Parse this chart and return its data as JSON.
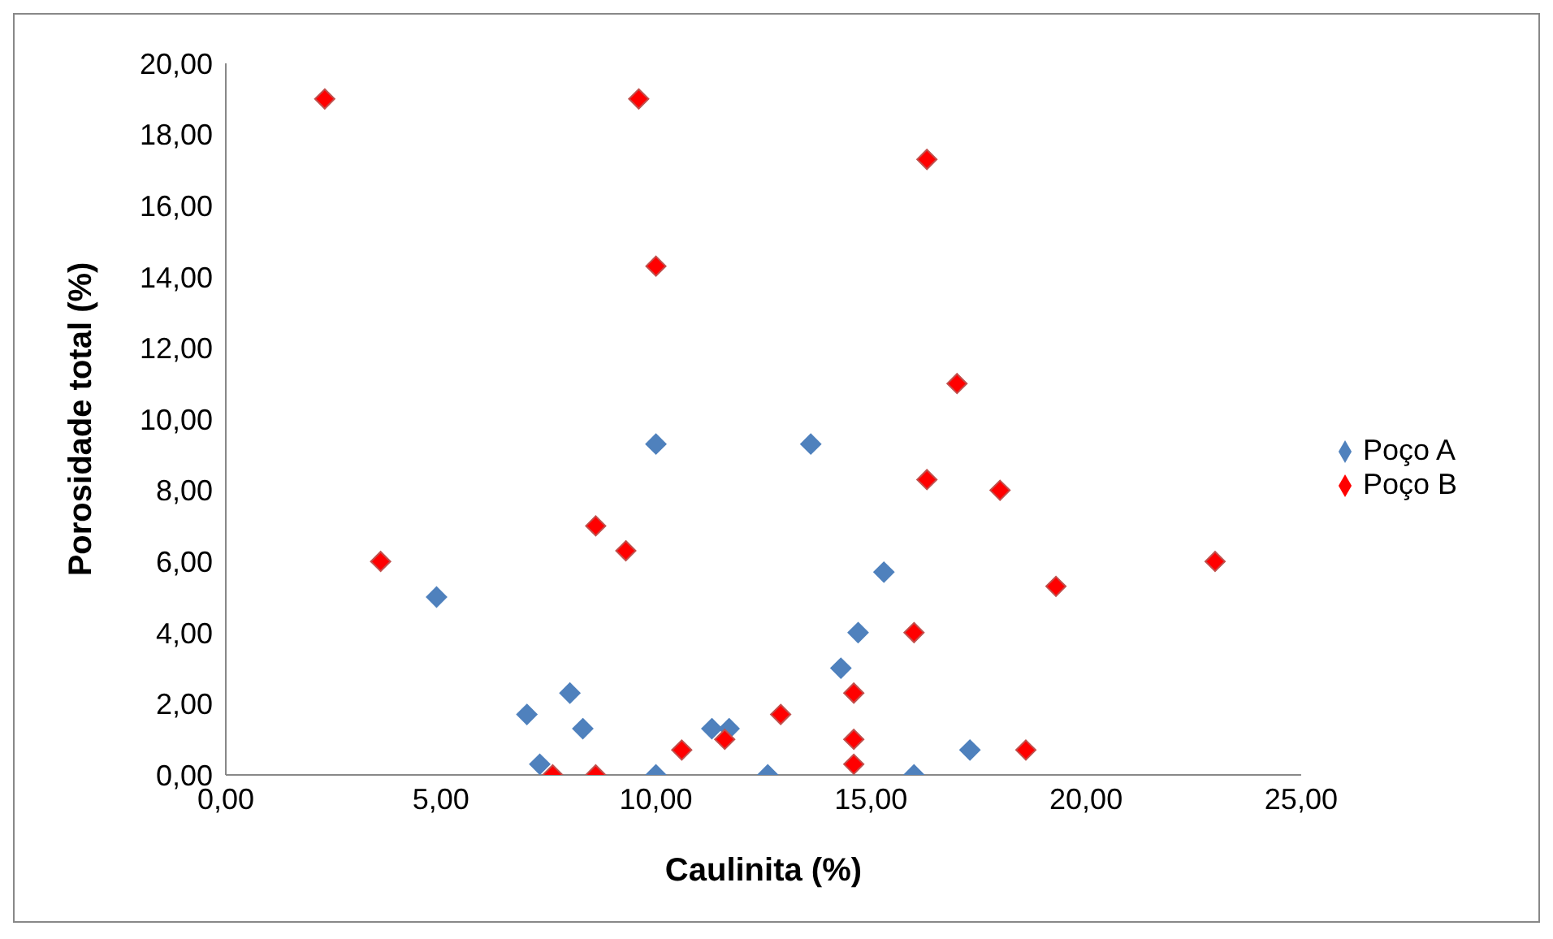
{
  "chart_data": {
    "type": "scatter",
    "xlabel": "Caulinita (%)",
    "ylabel": "Porosidade total (%)",
    "xlim": [
      0,
      25
    ],
    "xticks": [
      {
        "value": 0,
        "label": "0,00"
      },
      {
        "value": 5,
        "label": "5,00"
      },
      {
        "value": 10,
        "label": "10,00"
      },
      {
        "value": 15,
        "label": "15,00"
      },
      {
        "value": 20,
        "label": "20,00"
      },
      {
        "value": 25,
        "label": "25,00"
      }
    ],
    "ylim": [
      0,
      20
    ],
    "yticks": [
      {
        "value": 0,
        "label": "0,00"
      },
      {
        "value": 2,
        "label": "2,00"
      },
      {
        "value": 4,
        "label": "4,00"
      },
      {
        "value": 6,
        "label": "6,00"
      },
      {
        "value": 8,
        "label": "8,00"
      },
      {
        "value": 10,
        "label": "10,00"
      },
      {
        "value": 12,
        "label": "12,00"
      },
      {
        "value": 14,
        "label": "14,00"
      },
      {
        "value": 16,
        "label": "16,00"
      },
      {
        "value": 18,
        "label": "18,00"
      },
      {
        "value": 20,
        "label": "20,00"
      }
    ],
    "grid": false,
    "legend": "right",
    "marker": "diamond",
    "series": [
      {
        "name": "Poço A",
        "color": "#4f81bd",
        "x": [
          4.9,
          7.0,
          8.0,
          8.3,
          7.3,
          10.0,
          10.0,
          11.3,
          11.7,
          12.6,
          13.6,
          14.3,
          14.7,
          15.3,
          16.0,
          17.3
        ],
        "values": [
          5.0,
          1.7,
          2.3,
          1.3,
          0.3,
          0,
          9.3,
          1.3,
          1.3,
          0,
          9.3,
          3.0,
          4.0,
          5.7,
          0,
          0.7
        ]
      },
      {
        "name": "Poço B",
        "color": "#ff0000",
        "x": [
          2.3,
          3.6,
          7.6,
          8.6,
          8.6,
          9.3,
          9.6,
          10.0,
          10.6,
          11.6,
          12.9,
          14.6,
          14.6,
          14.6,
          16.0,
          16.3,
          16.3,
          17.0,
          18.0,
          19.3,
          18.6,
          23.0
        ],
        "values": [
          19.0,
          6.0,
          0,
          7.0,
          0,
          6.3,
          19.0,
          14.3,
          0.7,
          1.0,
          1.7,
          2.3,
          1.0,
          0.3,
          4.0,
          17.3,
          8.3,
          11.0,
          8.0,
          5.3,
          0.7,
          6.0
        ]
      }
    ]
  }
}
